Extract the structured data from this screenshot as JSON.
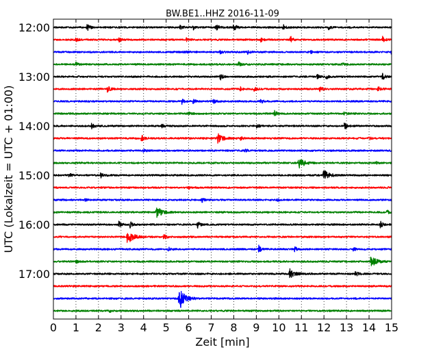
{
  "chart_data": {
    "type": "line",
    "title": "BW.BE1..HHZ 2016-11-09",
    "xlabel": "Zeit  [min]",
    "ylabel": "UTC (Lokalzeit = UTC + 01:00)",
    "xlim": [
      0,
      15
    ],
    "x_ticks": [
      "0",
      "1",
      "2",
      "3",
      "4",
      "5",
      "6",
      "7",
      "8",
      "9",
      "10",
      "11",
      "12",
      "13",
      "14",
      "15"
    ],
    "y_ticks": [
      {
        "label": "12:00",
        "row": 0
      },
      {
        "label": "13:00",
        "row": 4
      },
      {
        "label": "14:00",
        "row": 8
      },
      {
        "label": "15:00",
        "row": 12
      },
      {
        "label": "16:00",
        "row": 16
      },
      {
        "label": "17:00",
        "row": 20
      }
    ],
    "grid": "vertical dotted at each minute",
    "row_interval_min": 15,
    "row_colors": [
      "#000000",
      "#ff0000",
      "#0000ff",
      "#008000"
    ],
    "series": [
      {
        "row": 0,
        "start": "12:00",
        "events": [
          [
            1.5,
            0.5
          ],
          [
            5.6,
            0.35
          ],
          [
            6.2,
            0.3
          ],
          [
            7.2,
            0.5
          ],
          [
            8.0,
            0.55
          ],
          [
            10.2,
            0.35
          ],
          [
            12.2,
            0.35
          ]
        ]
      },
      {
        "row": 1,
        "start": "12:15",
        "events": [
          [
            1.0,
            0.25
          ],
          [
            2.9,
            0.3
          ],
          [
            5.9,
            0.2
          ],
          [
            9.2,
            0.3
          ],
          [
            10.5,
            0.6
          ],
          [
            14.6,
            0.45
          ]
        ]
      },
      {
        "row": 2,
        "start": "12:30",
        "events": [
          [
            5.8,
            0.25
          ],
          [
            7.4,
            0.2
          ],
          [
            8.6,
            0.35
          ],
          [
            11.4,
            0.2
          ],
          [
            15.0,
            0.45
          ]
        ]
      },
      {
        "row": 3,
        "start": "12:45",
        "events": [
          [
            1.0,
            0.25
          ],
          [
            8.2,
            0.35
          ],
          [
            12.8,
            0.2
          ]
        ]
      },
      {
        "row": 4,
        "start": "13:00",
        "events": [
          [
            7.4,
            0.5
          ],
          [
            11.7,
            0.3
          ],
          [
            12.1,
            0.35
          ],
          [
            14.6,
            0.45
          ]
        ]
      },
      {
        "row": 5,
        "start": "13:15",
        "events": [
          [
            2.4,
            0.5
          ],
          [
            8.3,
            0.3
          ],
          [
            8.9,
            0.3
          ],
          [
            11.8,
            0.4
          ],
          [
            14.4,
            0.45
          ]
        ]
      },
      {
        "row": 6,
        "start": "13:30",
        "events": [
          [
            5.7,
            0.35
          ],
          [
            6.2,
            0.3
          ],
          [
            7.1,
            0.3
          ],
          [
            9.2,
            0.25
          ]
        ]
      },
      {
        "row": 7,
        "start": "13:45",
        "events": [
          [
            6.0,
            0.2
          ],
          [
            9.8,
            0.45
          ],
          [
            12.9,
            0.2
          ]
        ]
      },
      {
        "row": 8,
        "start": "14:00",
        "events": [
          [
            1.7,
            0.45
          ],
          [
            4.8,
            0.25
          ],
          [
            9.0,
            0.3
          ],
          [
            12.9,
            0.55
          ]
        ]
      },
      {
        "row": 9,
        "start": "14:15",
        "events": [
          [
            3.9,
            0.5
          ],
          [
            7.3,
            0.65
          ],
          [
            8.3,
            0.3
          ],
          [
            14.0,
            0.2
          ]
        ]
      },
      {
        "row": 10,
        "start": "14:30",
        "events": [
          [
            4.0,
            0.2
          ],
          [
            8.5,
            0.2
          ]
        ]
      },
      {
        "row": 11,
        "start": "14:45",
        "events": [
          [
            10.9,
            0.75
          ],
          [
            14.3,
            0.2
          ]
        ]
      },
      {
        "row": 12,
        "start": "15:00",
        "events": [
          [
            0.7,
            0.3
          ],
          [
            2.1,
            0.3
          ],
          [
            12.0,
            0.75
          ]
        ]
      },
      {
        "row": 13,
        "start": "15:15",
        "events": [
          [
            6.0,
            0.2
          ]
        ]
      },
      {
        "row": 14,
        "start": "15:30",
        "events": [
          [
            1.4,
            0.25
          ],
          [
            6.6,
            0.35
          ],
          [
            9.9,
            0.25
          ]
        ]
      },
      {
        "row": 15,
        "start": "15:45",
        "events": [
          [
            4.6,
            0.75
          ],
          [
            14.8,
            0.25
          ]
        ]
      },
      {
        "row": 16,
        "start": "16:00",
        "events": [
          [
            2.9,
            0.45
          ],
          [
            3.4,
            0.4
          ],
          [
            6.4,
            0.45
          ],
          [
            14.5,
            0.45
          ]
        ]
      },
      {
        "row": 17,
        "start": "16:15",
        "events": [
          [
            3.3,
            1.1
          ],
          [
            4.9,
            0.35
          ]
        ]
      },
      {
        "row": 18,
        "start": "16:30",
        "events": [
          [
            5.1,
            0.25
          ],
          [
            9.1,
            0.55
          ],
          [
            10.7,
            0.3
          ],
          [
            13.3,
            0.3
          ]
        ]
      },
      {
        "row": 19,
        "start": "16:45",
        "events": [
          [
            1.0,
            0.2
          ],
          [
            14.1,
            0.85
          ]
        ]
      },
      {
        "row": 20,
        "start": "17:00",
        "events": [
          [
            10.5,
            0.75
          ],
          [
            13.4,
            0.35
          ]
        ]
      },
      {
        "row": 21,
        "start": "17:15",
        "events": []
      },
      {
        "row": 22,
        "start": "17:30",
        "events": [
          [
            5.6,
            1.7
          ]
        ]
      },
      {
        "row": 23,
        "start": "17:45",
        "events": [
          [
            2.5,
            0.15
          ]
        ]
      }
    ]
  }
}
